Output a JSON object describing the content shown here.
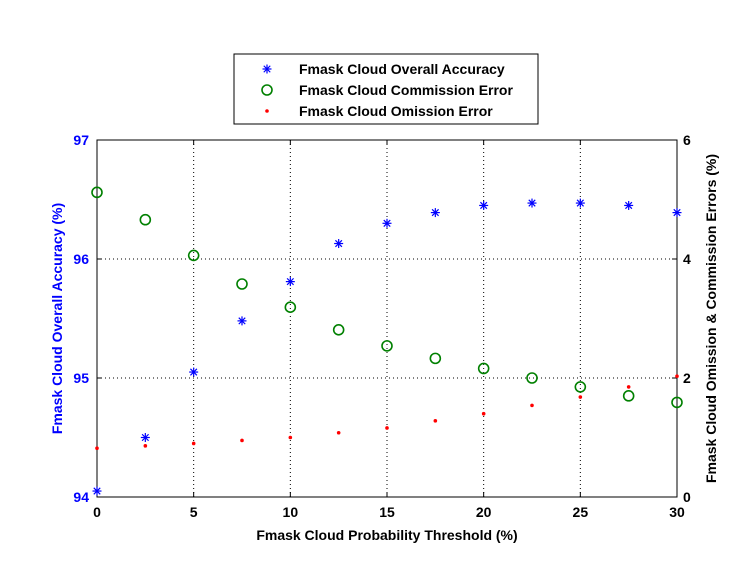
{
  "chart_data": {
    "type": "scatter",
    "title": "",
    "xlabel": "Fmask Cloud Probability Threshold (%)",
    "ylabel_left": "Fmask Cloud Overall Accuracy (%)",
    "ylabel_right": "Fmask Cloud Omission & Commission Errors (%)",
    "xlim": [
      0,
      30
    ],
    "ylim_left": [
      94,
      97
    ],
    "ylim_right": [
      0,
      6
    ],
    "x_ticks": [
      "0",
      "5",
      "10",
      "15",
      "20",
      "25",
      "30"
    ],
    "y_left_ticks": [
      "94",
      "95",
      "96",
      "97"
    ],
    "y_right_ticks": [
      "0",
      "2",
      "4",
      "6"
    ],
    "grid": true,
    "legend_position": "top-center-outside",
    "colors": {
      "left_axis": "#0000ff",
      "right_axis": "#000000"
    },
    "x": [
      0,
      2.5,
      5,
      7.5,
      10,
      12.5,
      15,
      17.5,
      20,
      22.5,
      25,
      27.5,
      30
    ],
    "series": [
      {
        "name": "Fmask Cloud Overall Accuracy",
        "axis": "left",
        "marker": "asterisk",
        "color": "#0000ff",
        "values": [
          94.05,
          94.5,
          95.05,
          95.48,
          95.81,
          96.13,
          96.3,
          96.39,
          96.45,
          96.47,
          96.47,
          96.45,
          96.39
        ]
      },
      {
        "name": "Fmask Cloud Commission Error",
        "axis": "right",
        "marker": "circle",
        "color": "#008000",
        "values": [
          5.12,
          4.66,
          4.06,
          3.58,
          3.19,
          2.81,
          2.54,
          2.33,
          2.16,
          2.0,
          1.85,
          1.7,
          1.59
        ]
      },
      {
        "name": "Fmask Cloud Omission Error",
        "axis": "right",
        "marker": "dot",
        "color": "#ff0000",
        "values": [
          0.82,
          0.86,
          0.9,
          0.95,
          1.0,
          1.08,
          1.16,
          1.28,
          1.4,
          1.54,
          1.68,
          1.85,
          2.03
        ]
      }
    ]
  }
}
